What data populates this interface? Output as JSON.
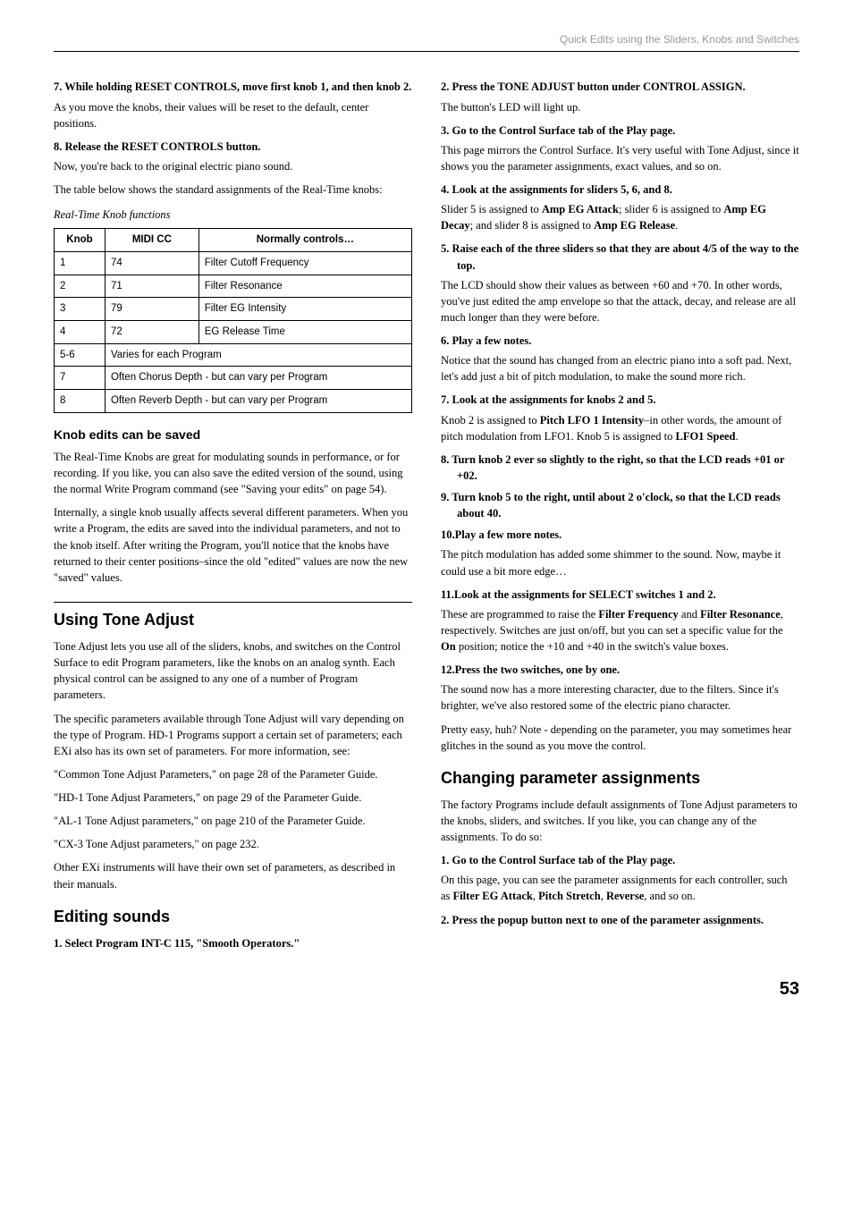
{
  "header": "Quick Edits using the Sliders, Knobs and Switches",
  "left": {
    "step7": "7.  While holding RESET CONTROLS, move first knob 1, and then knob 2.",
    "p1": "As you move the knobs, their values will be reset to the default, center positions.",
    "step8": "8.  Release the RESET CONTROLS button.",
    "p2": "Now, you're back to the original electric piano sound.",
    "p3": "The table below shows the standard assignments of the Real-Time knobs:",
    "caption": "Real-Time Knob functions",
    "table": {
      "headers": [
        "Knob",
        "MIDI CC",
        "Normally controls…"
      ],
      "rows": [
        [
          "1",
          "74",
          "Filter Cutoff Frequency"
        ],
        [
          "2",
          "71",
          "Filter Resonance"
        ],
        [
          "3",
          "79",
          "Filter EG Intensity"
        ],
        [
          "4",
          "72",
          "EG Release Time"
        ],
        [
          "5-6",
          "Varies for each Program",
          ""
        ],
        [
          "7",
          "Often Chorus Depth - but can vary per Program",
          ""
        ],
        [
          "8",
          "Often Reverb Depth - but can vary per Program",
          ""
        ]
      ]
    },
    "h3_1": "Knob edits can be saved",
    "p4": "The Real-Time Knobs are great for modulating sounds in performance, or for recording. If you like, you can also save the edited version of the sound, using the normal Write Program command (see \"Saving your edits\" on page 54).",
    "p5": "Internally, a single knob usually affects several different parameters. When you write a Program, the edits are saved into the individual parameters, and not to the knob itself. After writing the Program, you'll notice that the knobs have returned to their center positions–since the old \"edited\" values are now the new \"saved\" values.",
    "h2_1": "Using Tone Adjust",
    "p6": "Tone Adjust lets you use all of the sliders, knobs, and switches on the Control Surface to edit Program parameters, like the knobs on an analog synth. Each physical control can be assigned to any one of a number of Program parameters.",
    "p7": "The specific parameters available through Tone Adjust will vary depending on the type of Program. HD-1 Programs support a certain set of parameters; each EXi also has its own set of parameters. For more information, see:",
    "p8": "\"Common Tone Adjust Parameters,\" on page 28 of the Parameter Guide.",
    "p9": "\"HD-1 Tone Adjust Parameters,\" on page 29 of the Parameter Guide.",
    "p10": "\"AL-1 Tone Adjust parameters,\" on page 210 of the Parameter Guide.",
    "p11": "\"CX-3 Tone Adjust parameters,\" on page 232.",
    "p12": "Other EXi instruments will have their own set of parameters, as described in their manuals.",
    "h2_2": "Editing sounds",
    "step1b": "1.  Select Program INT-C 115, \"Smooth Operators.\""
  },
  "right": {
    "step2": "2.  Press the TONE ADJUST button under CONTROL ASSIGN.",
    "p1": "The button's LED will light up.",
    "step3": "3.  Go to the Control Surface tab of the Play page.",
    "p2": "This page mirrors the Control Surface. It's very useful with Tone Adjust, since it shows you the parameter assignments, exact values, and so on.",
    "step4": "4.  Look at the assignments for sliders 5, 6, and 8.",
    "p3a": "Slider 5 is assigned to ",
    "p3b": "Amp EG Attack",
    "p3c": "; slider 6 is assigned to ",
    "p3d": "Amp EG Decay",
    "p3e": "; and slider 8 is assigned to ",
    "p3f": "Amp EG Release",
    "p3g": ".",
    "step5": "5.  Raise each of the three sliders so that they are about 4/5 of the way to the top.",
    "p4": "The LCD should show their values as between +60 and +70. In other words, you've just edited the amp envelope so that the attack, decay, and release are all much longer than they were before.",
    "step6": "6.  Play a few notes.",
    "p5": "Notice that the sound has changed from an electric piano into a soft pad. Next, let's add just a bit of pitch modulation, to make the sound more rich.",
    "step7": "7.  Look at the assignments for knobs 2 and 5.",
    "p6a": "Knob 2 is assigned to ",
    "p6b": "Pitch LFO 1 Intensity",
    "p6c": "–in other words, the amount of pitch modulation from LFO1. Knob 5 is assigned to ",
    "p6d": "LFO1 Speed",
    "p6e": ".",
    "step8": "8.  Turn knob 2 ever so slightly to the right, so that the LCD reads +01 or +02.",
    "step9": "9.  Turn knob 5 to the right, until about 2 o'clock, so that the LCD reads about 40.",
    "step10": "10.Play a few more notes.",
    "p7": "The pitch modulation has added some shimmer to the sound. Now, maybe it could use a bit more edge…",
    "step11": "11.Look at the assignments for SELECT switches 1 and 2.",
    "p8a": "These are programmed to raise the ",
    "p8b": "Filter Frequency",
    "p8c": " and ",
    "p8d": "Filter Resonance",
    "p8e": ", respectively. Switches are just on/off, but you can set a specific value for the ",
    "p8f": "On",
    "p8g": " position; notice the +10 and +40 in the switch's value boxes.",
    "step12": "12.Press the two switches, one by one.",
    "p9": "The sound now has a more interesting character, due to the filters. Since it's brighter, we've also restored some of the electric piano character.",
    "p10": "Pretty easy, huh? Note - depending on the parameter, you may sometimes hear glitches in the sound as you move the control.",
    "h2_1": "Changing parameter assignments",
    "p11": "The factory Programs include default assignments of Tone Adjust parameters to the knobs, sliders, and switches. If you like, you can change any of the assignments. To do so:",
    "step1b": "1.  Go to the Control Surface tab of the Play page.",
    "p12a": "On this page, you can see the parameter assignments for each controller, such as ",
    "p12b": "Filter EG Attack",
    "p12c": ", ",
    "p12d": "Pitch Stretch",
    "p12e": ", ",
    "p12f": "Reverse",
    "p12g": ", and so on.",
    "step2b": "2.  Press the popup button next to one of the parameter assignments."
  },
  "pagenum": "53"
}
